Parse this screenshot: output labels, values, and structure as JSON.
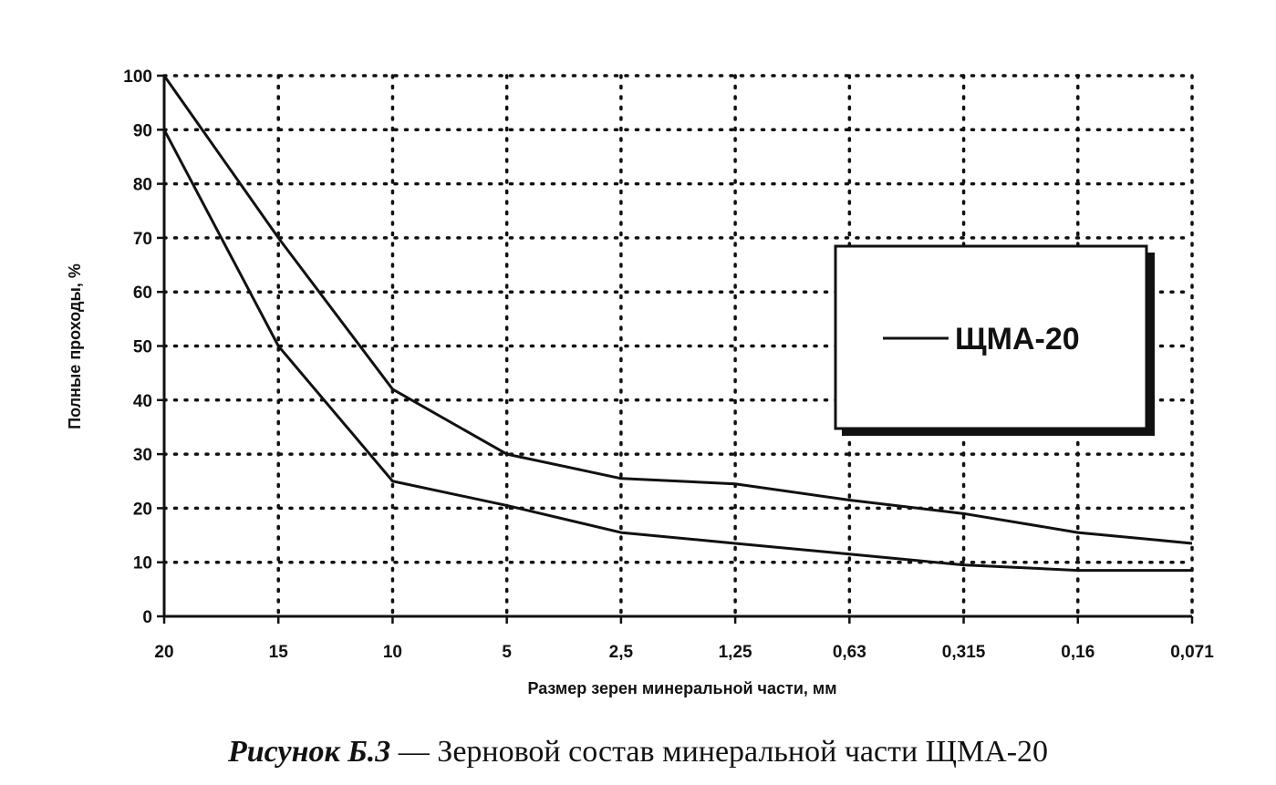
{
  "chart_data": {
    "type": "line",
    "categories": [
      "20",
      "15",
      "10",
      "5",
      "2,5",
      "1,25",
      "0,63",
      "0,315",
      "0,16",
      "0,071"
    ],
    "series": [
      {
        "values": [
          100,
          70,
          42,
          30,
          25.5,
          24.5,
          21.5,
          19,
          15.5,
          13.5
        ]
      },
      {
        "values": [
          90,
          50,
          25,
          20.5,
          15.5,
          13.5,
          11.5,
          9.5,
          8.5,
          8.5
        ]
      }
    ],
    "xlabel": "Размер зерен минеральной части, мм",
    "ylabel": "Полные проходы, %",
    "ylim": [
      0,
      100
    ],
    "yticks": [
      0,
      10,
      20,
      30,
      40,
      50,
      60,
      70,
      80,
      90,
      100
    ],
    "grid": true,
    "legend": {
      "label": "ЩМА-20",
      "position": "right"
    }
  },
  "caption": {
    "prefix": "Рисунок Б.3",
    "text": " — Зерновой состав минеральной части ЩМА-20"
  }
}
